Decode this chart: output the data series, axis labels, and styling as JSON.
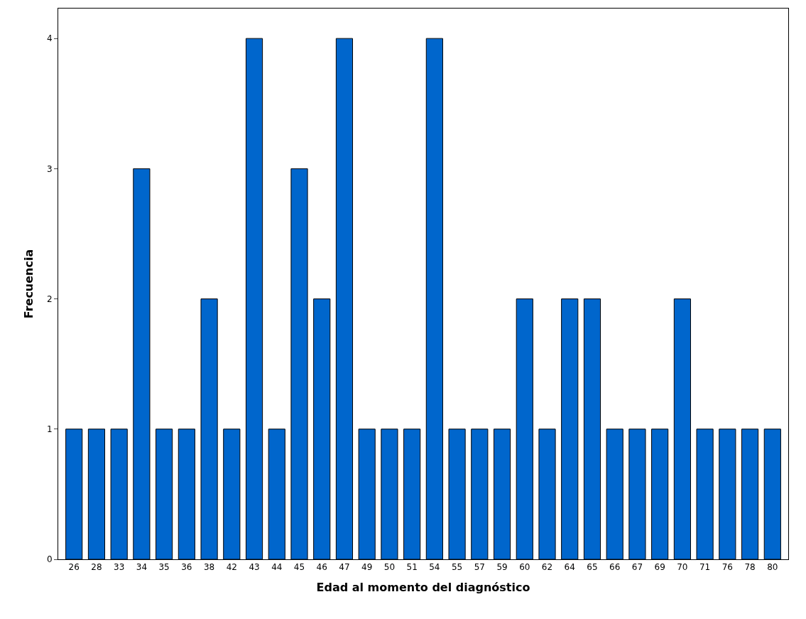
{
  "chart_data": {
    "type": "bar",
    "xlabel": "Edad al momento del diagnóstico",
    "ylabel": "Frecuencia",
    "categories": [
      "26",
      "28",
      "33",
      "34",
      "35",
      "36",
      "38",
      "42",
      "43",
      "44",
      "45",
      "46",
      "47",
      "49",
      "50",
      "51",
      "54",
      "55",
      "57",
      "59",
      "60",
      "62",
      "64",
      "65",
      "66",
      "67",
      "69",
      "70",
      "71",
      "76",
      "78",
      "80"
    ],
    "values": [
      1,
      1,
      1,
      3,
      1,
      1,
      2,
      1,
      4,
      1,
      3,
      2,
      4,
      1,
      1,
      1,
      4,
      1,
      1,
      1,
      2,
      1,
      2,
      2,
      1,
      1,
      1,
      2,
      1,
      1,
      1,
      1
    ],
    "color": "#0066cc",
    "ylim": [
      0,
      4.23
    ],
    "yticks": [
      0,
      1,
      2,
      3,
      4
    ],
    "legend": false
  }
}
